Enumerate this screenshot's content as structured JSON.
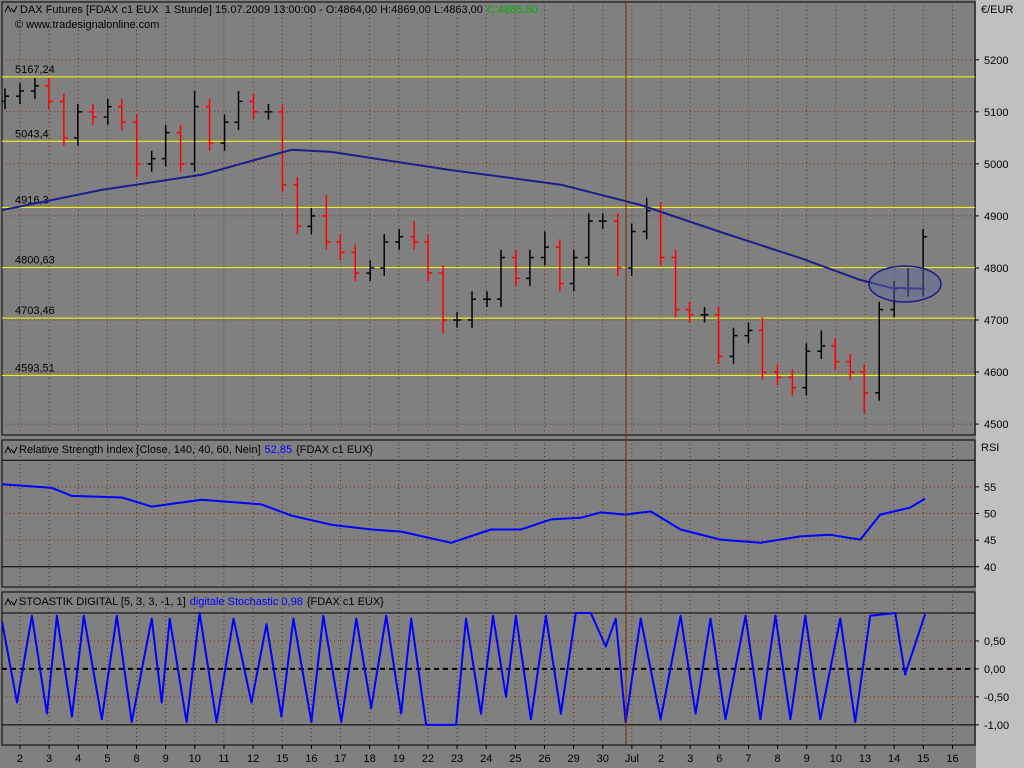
{
  "chart_data": [
    {
      "type": "ohlc",
      "title": "DAX Futures [FDAX c1 EUX  1 Stunde] 15.07.2009 13:00:00 - O:4864,00 H:4869,00 L:4863,00",
      "last_close_label": "C:4865,50",
      "subtitle": "© www.tradesignalonline.com",
      "y_axis_label": "€/EUR",
      "ylim": [
        4479,
        5311
      ],
      "yticks": [
        4500,
        4600,
        4700,
        4800,
        4900,
        5000,
        5100,
        5200
      ],
      "grid": true,
      "up_color": "#000000",
      "down_color": "#ff0000",
      "x": [
        3,
        18,
        33,
        47,
        62,
        76,
        91,
        106,
        120,
        135,
        150,
        164,
        179,
        193,
        208,
        223,
        237,
        252,
        267,
        281,
        296,
        310,
        325,
        339,
        354,
        369,
        383,
        398,
        413,
        427,
        442,
        456,
        471,
        486,
        500,
        515,
        529,
        544,
        559,
        573,
        588,
        602,
        617,
        631,
        646,
        660,
        675,
        689,
        704,
        718,
        733,
        748,
        762,
        777,
        792,
        806,
        821,
        835,
        850,
        864,
        879,
        894,
        908,
        923
      ],
      "open": [
        5120,
        5130,
        5140,
        5150,
        5120,
        5050,
        5100,
        5090,
        5110,
        5080,
        5000,
        5010,
        5060,
        5000,
        5110,
        5040,
        5080,
        5120,
        5100,
        5100,
        4960,
        4880,
        4900,
        4850,
        4830,
        4790,
        4800,
        4850,
        4860,
        4850,
        4790,
        4700,
        4700,
        4740,
        4740,
        4820,
        4780,
        4820,
        4840,
        4770,
        4820,
        4890,
        4890,
        4800,
        4870,
        4910,
        4820,
        4720,
        4710,
        4710,
        4630,
        4670,
        4680,
        4600,
        4590,
        4570,
        4640,
        4650,
        4620,
        4600,
        4560,
        4720,
        4760,
        4760
      ],
      "high": [
        5145,
        5155,
        5165,
        5165,
        5135,
        5115,
        5115,
        5125,
        5125,
        5095,
        5025,
        5075,
        5075,
        5140,
        5125,
        5095,
        5140,
        5135,
        5115,
        5115,
        4975,
        4915,
        4940,
        4865,
        4845,
        4815,
        4865,
        4875,
        4890,
        4865,
        4805,
        4715,
        4755,
        4755,
        4835,
        4835,
        4835,
        4870,
        4855,
        4835,
        4905,
        4905,
        4905,
        4885,
        4935,
        4925,
        4835,
        4735,
        4725,
        4725,
        4685,
        4695,
        4705,
        4615,
        4605,
        4655,
        4680,
        4665,
        4635,
        4615,
        4735,
        4775,
        4800,
        4875
      ],
      "low": [
        5105,
        5115,
        5125,
        5105,
        5035,
        5035,
        5075,
        5075,
        5065,
        4975,
        4985,
        4995,
        4985,
        4985,
        5025,
        5025,
        5065,
        5085,
        5085,
        4945,
        4865,
        4865,
        4835,
        4815,
        4775,
        4775,
        4785,
        4835,
        4835,
        4775,
        4675,
        4685,
        4685,
        4725,
        4725,
        4765,
        4765,
        4805,
        4755,
        4755,
        4805,
        4875,
        4785,
        4785,
        4855,
        4805,
        4705,
        4695,
        4695,
        4615,
        4615,
        4655,
        4585,
        4575,
        4555,
        4555,
        4625,
        4605,
        4585,
        4520,
        4545,
        4705,
        4745,
        4745
      ],
      "close": [
        5130,
        5140,
        5150,
        5120,
        5050,
        5100,
        5090,
        5110,
        5080,
        5000,
        5010,
        5060,
        5000,
        5110,
        5040,
        5080,
        5120,
        5100,
        5100,
        4960,
        4880,
        4900,
        4850,
        4830,
        4790,
        4800,
        4850,
        4860,
        4850,
        4790,
        4700,
        4700,
        4740,
        4740,
        4820,
        4780,
        4820,
        4840,
        4770,
        4820,
        4890,
        4890,
        4800,
        4870,
        4910,
        4820,
        4720,
        4710,
        4710,
        4630,
        4670,
        4680,
        4600,
        4590,
        4570,
        4640,
        4650,
        4620,
        4600,
        4560,
        4720,
        4760,
        4760,
        4860
      ],
      "series": [
        {
          "color": "#1c1c8c",
          "x": [
            0,
            100,
            200,
            290,
            330,
            450,
            560,
            640,
            720,
            800,
            860,
            890,
            925
          ],
          "values": [
            4911,
            4950,
            4979,
            5027,
            5023,
            4988,
            4960,
            4921,
            4869,
            4819,
            4777,
            4762,
            4760
          ]
        }
      ],
      "level_color": "#ffff00",
      "levels": [
        {
          "value": 5167.24,
          "label": "5167,24"
        },
        {
          "value": 5043.4,
          "label": "5043,4"
        },
        {
          "value": 4916.3,
          "label": "4916,3"
        },
        {
          "value": 4800.63,
          "label": "4800,63"
        },
        {
          "value": 4703.46,
          "label": "4703,46"
        },
        {
          "value": 4593.51,
          "label": "4593,51"
        }
      ]
    },
    {
      "type": "line",
      "title": "Relative Strength Index [Close, 140, 40, 60, Nein]",
      "value_label": "52,85",
      "source_label": "{FDAX c1 EUX}",
      "y_axis_label": "RSI",
      "ylim": [
        36.2,
        63.8
      ],
      "yticks": [
        40,
        45,
        50,
        55
      ],
      "grid": true,
      "levels": [
        60,
        40
      ],
      "series": [
        {
          "color": "#0000ff",
          "x": [
            0,
            50,
            70,
            120,
            150,
            200,
            260,
            290,
            330,
            370,
            400,
            450,
            490,
            520,
            550,
            580,
            600,
            625,
            650,
            680,
            720,
            760,
            800,
            830,
            860,
            880,
            910,
            925
          ],
          "values": [
            55.5,
            54.8,
            53.3,
            53,
            51.3,
            52.6,
            51.7,
            49.6,
            47.9,
            47,
            46.6,
            44.5,
            47,
            47,
            48.9,
            49.2,
            50.2,
            49.8,
            50.4,
            47,
            45.1,
            44.5,
            45.7,
            46,
            45.1,
            49.8,
            51.1,
            52.8
          ]
        }
      ]
    },
    {
      "type": "line",
      "title": "STOASTIK DIGITAL [5, 3, 3, -1, 1]",
      "value_label": "digitale Stochastic 0,98",
      "source_label": "{FDAX c1 EUX}",
      "ylim": [
        -1.36,
        1.375
      ],
      "yticks": [
        {
          "value": 0.5,
          "label": "0,50"
        },
        {
          "value": 0,
          "label": "0,00"
        },
        {
          "value": -0.5,
          "label": "-0,50"
        },
        {
          "value": -1,
          "label": "-1,00"
        }
      ],
      "grid": true,
      "levels": [
        1,
        0,
        -1
      ],
      "xlim": [
        0,
        975
      ],
      "xticks": [
        {
          "value": 18,
          "label": "2"
        },
        {
          "value": 47.2,
          "label": "3"
        },
        {
          "value": 76.4,
          "label": "4"
        },
        {
          "value": 105.6,
          "label": "5"
        },
        {
          "value": 134.8,
          "label": "8"
        },
        {
          "value": 164,
          "label": "9"
        },
        {
          "value": 193.2,
          "label": "10"
        },
        {
          "value": 222.4,
          "label": "11"
        },
        {
          "value": 251.6,
          "label": "12"
        },
        {
          "value": 280.8,
          "label": "15"
        },
        {
          "value": 310,
          "label": "16"
        },
        {
          "value": 339.2,
          "label": "17"
        },
        {
          "value": 368.4,
          "label": "18"
        },
        {
          "value": 397.6,
          "label": "19"
        },
        {
          "value": 426.8,
          "label": "22"
        },
        {
          "value": 456,
          "label": "23"
        },
        {
          "value": 485.2,
          "label": "24"
        },
        {
          "value": 514.4,
          "label": "25"
        },
        {
          "value": 543.6,
          "label": "26"
        },
        {
          "value": 572.8,
          "label": "29"
        },
        {
          "value": 602,
          "label": "30"
        },
        {
          "value": 631.2,
          "label": "Jul"
        },
        {
          "value": 660.4,
          "label": "2"
        },
        {
          "value": 689.6,
          "label": "3"
        },
        {
          "value": 718.8,
          "label": "6"
        },
        {
          "value": 748,
          "label": "7"
        },
        {
          "value": 777.2,
          "label": "8"
        },
        {
          "value": 806.4,
          "label": "9"
        },
        {
          "value": 835.6,
          "label": "10"
        },
        {
          "value": 864.8,
          "label": "13"
        },
        {
          "value": 894,
          "label": "14"
        },
        {
          "value": 923.2,
          "label": "15"
        },
        {
          "value": 952.4,
          "label": "16"
        }
      ],
      "series": [
        {
          "color": "#0000ff",
          "x": [
            0,
            15,
            30,
            45,
            55,
            70,
            82,
            100,
            115,
            130,
            150,
            160,
            168,
            185,
            198,
            215,
            232,
            250,
            265,
            280,
            292,
            310,
            322,
            340,
            355,
            370,
            385,
            400,
            410,
            425,
            455,
            465,
            480,
            492,
            505,
            515,
            530,
            545,
            560,
            575,
            590,
            605,
            615,
            625,
            640,
            660,
            680,
            695,
            710,
            725,
            745,
            760,
            775,
            790,
            805,
            820,
            840,
            855,
            870,
            895,
            905,
            925
          ],
          "values": [
            0.85,
            -0.6,
            0.95,
            -0.8,
            0.95,
            -0.85,
            0.95,
            -0.9,
            0.95,
            -0.95,
            0.9,
            -0.6,
            0.9,
            -0.95,
            1.0,
            -0.95,
            0.9,
            -0.6,
            0.8,
            -0.85,
            0.9,
            -0.95,
            0.95,
            -0.95,
            0.9,
            -0.7,
            0.95,
            -0.8,
            0.9,
            -1.0,
            -1.0,
            0.9,
            -0.8,
            0.95,
            -0.5,
            0.95,
            -0.9,
            0.95,
            -0.8,
            1.0,
            1.0,
            0.4,
            0.9,
            -0.95,
            0.9,
            -0.9,
            0.95,
            -0.8,
            0.9,
            -0.9,
            0.95,
            -0.9,
            0.95,
            -0.9,
            0.95,
            -0.9,
            0.9,
            -0.95,
            0.95,
            1.0,
            -0.1,
            0.98
          ]
        }
      ]
    }
  ]
}
